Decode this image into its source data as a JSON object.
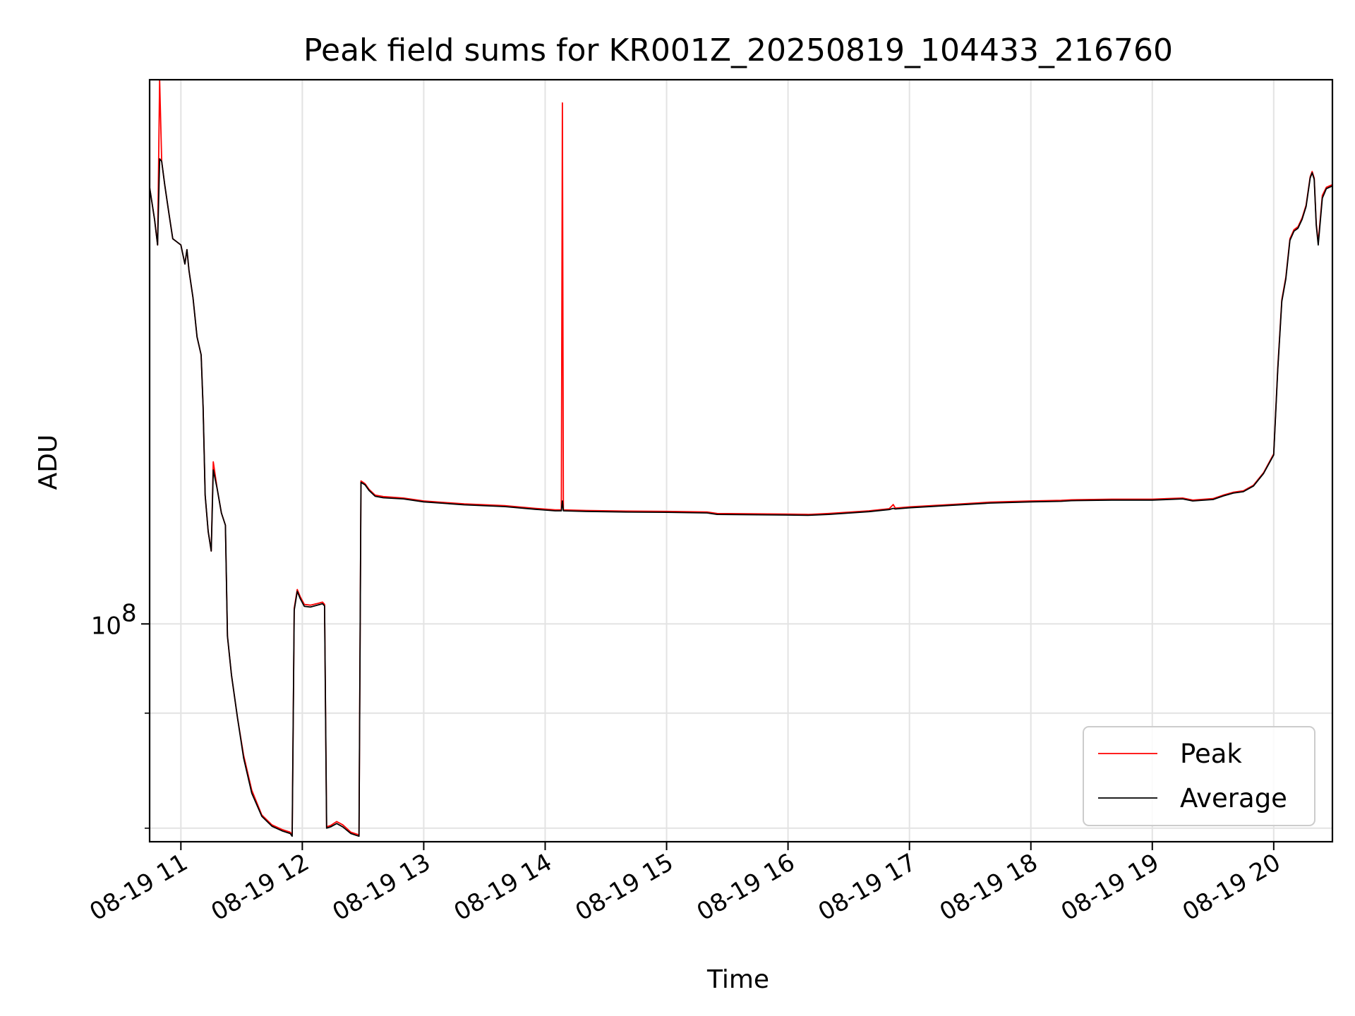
{
  "chart_data": {
    "type": "line",
    "title": "Peak field sums for KR001Z_20250819_104433_216760",
    "xlabel": "Time",
    "ylabel": "ADU",
    "y_scale": "log",
    "ylim": [
      58000000,
      390000000
    ],
    "xlim": [
      "2025-08-19 10:44:33",
      "2025-08-19 20:29:00"
    ],
    "x_ticks": [
      {
        "t": "2025-08-19 11:00",
        "label": "08-19 11"
      },
      {
        "t": "2025-08-19 12:00",
        "label": "08-19 12"
      },
      {
        "t": "2025-08-19 13:00",
        "label": "08-19 13"
      },
      {
        "t": "2025-08-19 14:00",
        "label": "08-19 14"
      },
      {
        "t": "2025-08-19 15:00",
        "label": "08-19 15"
      },
      {
        "t": "2025-08-19 16:00",
        "label": "08-19 16"
      },
      {
        "t": "2025-08-19 17:00",
        "label": "08-19 17"
      },
      {
        "t": "2025-08-19 18:00",
        "label": "08-19 18"
      },
      {
        "t": "2025-08-19 19:00",
        "label": "08-19 19"
      },
      {
        "t": "2025-08-19 20:00",
        "label": "08-19 20"
      }
    ],
    "y_major_ticks": [
      {
        "value": 100000000,
        "label_base": "10",
        "label_exp": "8"
      }
    ],
    "y_minor_ticks": [
      80000000,
      60000000
    ],
    "grid": true,
    "legend_position": "lower-right",
    "series": [
      {
        "name": "Peak",
        "color": "#ff0000",
        "points": [
          [
            "2025-08-19 10:44:33",
            298000000
          ],
          [
            "2025-08-19 10:47:00",
            275000000
          ],
          [
            "2025-08-19 10:48:30",
            258000000
          ],
          [
            "2025-08-19 10:49:30",
            390000000
          ],
          [
            "2025-08-19 10:50:30",
            318000000
          ],
          [
            "2025-08-19 10:52:00",
            300000000
          ],
          [
            "2025-08-19 10:54:00",
            280000000
          ],
          [
            "2025-08-19 10:56:00",
            262000000
          ],
          [
            "2025-08-19 10:58:00",
            260000000
          ],
          [
            "2025-08-19 11:00:00",
            258000000
          ],
          [
            "2025-08-19 11:02:00",
            246000000
          ],
          [
            "2025-08-19 11:03:00",
            255000000
          ],
          [
            "2025-08-19 11:04:00",
            242000000
          ],
          [
            "2025-08-19 11:06:00",
            226000000
          ],
          [
            "2025-08-19 11:08:00",
            205000000
          ],
          [
            "2025-08-19 11:10:00",
            196000000
          ],
          [
            "2025-08-19 11:11:00",
            172000000
          ],
          [
            "2025-08-19 11:12:00",
            138000000
          ],
          [
            "2025-08-19 11:13:30",
            126000000
          ],
          [
            "2025-08-19 11:15:00",
            120000000
          ],
          [
            "2025-08-19 11:16:00",
            150000000
          ],
          [
            "2025-08-19 11:18:00",
            140000000
          ],
          [
            "2025-08-19 11:20:00",
            132000000
          ],
          [
            "2025-08-19 11:22:00",
            128000000
          ],
          [
            "2025-08-19 11:23:00",
            97000000
          ],
          [
            "2025-08-19 11:25:00",
            88000000
          ],
          [
            "2025-08-19 11:28:00",
            79000000
          ],
          [
            "2025-08-19 11:31:00",
            72000000
          ],
          [
            "2025-08-19 11:35:00",
            66000000
          ],
          [
            "2025-08-19 11:40:00",
            62000000
          ],
          [
            "2025-08-19 11:45:00",
            60500000
          ],
          [
            "2025-08-19 11:50:00",
            59800000
          ],
          [
            "2025-08-19 11:54:00",
            59400000
          ],
          [
            "2025-08-19 11:55:00",
            59000000
          ],
          [
            "2025-08-19 11:56:00",
            104000000
          ],
          [
            "2025-08-19 11:57:30",
            109000000
          ],
          [
            "2025-08-19 11:59:00",
            107000000
          ],
          [
            "2025-08-19 12:01:00",
            105000000
          ],
          [
            "2025-08-19 12:04:00",
            104800000
          ],
          [
            "2025-08-19 12:08:00",
            105300000
          ],
          [
            "2025-08-19 12:10:00",
            105600000
          ],
          [
            "2025-08-19 12:11:00",
            105000000
          ],
          [
            "2025-08-19 12:12:00",
            60200000
          ],
          [
            "2025-08-19 12:14:00",
            60400000
          ],
          [
            "2025-08-19 12:17:00",
            61000000
          ],
          [
            "2025-08-19 12:20:00",
            60500000
          ],
          [
            "2025-08-19 12:24:00",
            59400000
          ],
          [
            "2025-08-19 12:27:00",
            59100000
          ],
          [
            "2025-08-19 12:28:00",
            59000000
          ],
          [
            "2025-08-19 12:29:00",
            143000000
          ],
          [
            "2025-08-19 12:31:00",
            142000000
          ],
          [
            "2025-08-19 12:33:00",
            140000000
          ],
          [
            "2025-08-19 12:36:00",
            138000000
          ],
          [
            "2025-08-19 12:40:00",
            137500000
          ],
          [
            "2025-08-19 12:50:00",
            137000000
          ],
          [
            "2025-08-19 13:00:00",
            136000000
          ],
          [
            "2025-08-19 13:20:00",
            135000000
          ],
          [
            "2025-08-19 13:40:00",
            134400000
          ],
          [
            "2025-08-19 13:55:00",
            133500000
          ],
          [
            "2025-08-19 14:05:00",
            133000000
          ],
          [
            "2025-08-19 14:08:00",
            133000000
          ],
          [
            "2025-08-19 14:08:30",
            368000000
          ],
          [
            "2025-08-19 14:09:00",
            133000000
          ],
          [
            "2025-08-19 14:20:00",
            132800000
          ],
          [
            "2025-08-19 14:40:00",
            132600000
          ],
          [
            "2025-08-19 15:00:00",
            132500000
          ],
          [
            "2025-08-19 15:20:00",
            132300000
          ],
          [
            "2025-08-19 15:25:00",
            131800000
          ],
          [
            "2025-08-19 15:40:00",
            131700000
          ],
          [
            "2025-08-19 16:00:00",
            131600000
          ],
          [
            "2025-08-19 16:10:00",
            131500000
          ],
          [
            "2025-08-19 16:20:00",
            131800000
          ],
          [
            "2025-08-19 16:40:00",
            132700000
          ],
          [
            "2025-08-19 16:50:00",
            133400000
          ],
          [
            "2025-08-19 16:52:00",
            134800000
          ],
          [
            "2025-08-19 16:53:00",
            133600000
          ],
          [
            "2025-08-19 17:00:00",
            134000000
          ],
          [
            "2025-08-19 17:20:00",
            134800000
          ],
          [
            "2025-08-19 17:40:00",
            135600000
          ],
          [
            "2025-08-19 18:00:00",
            136000000
          ],
          [
            "2025-08-19 18:15:00",
            136200000
          ],
          [
            "2025-08-19 18:20:00",
            136400000
          ],
          [
            "2025-08-19 18:40:00",
            136600000
          ],
          [
            "2025-08-19 19:00:00",
            136600000
          ],
          [
            "2025-08-19 19:15:00",
            137000000
          ],
          [
            "2025-08-19 19:20:00",
            136300000
          ],
          [
            "2025-08-19 19:30:00",
            136800000
          ],
          [
            "2025-08-19 19:35:00",
            138000000
          ],
          [
            "2025-08-19 19:40:00",
            139000000
          ],
          [
            "2025-08-19 19:45:00",
            139500000
          ],
          [
            "2025-08-19 19:50:00",
            141500000
          ],
          [
            "2025-08-19 19:55:00",
            146000000
          ],
          [
            "2025-08-19 20:00:00",
            153000000
          ],
          [
            "2025-08-19 20:02:00",
            190000000
          ],
          [
            "2025-08-19 20:04:00",
            225000000
          ],
          [
            "2025-08-19 20:06:00",
            238000000
          ],
          [
            "2025-08-19 20:08:00",
            262000000
          ],
          [
            "2025-08-19 20:10:00",
            268000000
          ],
          [
            "2025-08-19 20:12:00",
            270000000
          ],
          [
            "2025-08-19 20:14:00",
            276000000
          ],
          [
            "2025-08-19 20:16:00",
            285000000
          ],
          [
            "2025-08-19 20:18:00",
            306000000
          ],
          [
            "2025-08-19 20:19:00",
            310000000
          ],
          [
            "2025-08-19 20:20:00",
            305000000
          ],
          [
            "2025-08-19 20:21:00",
            272000000
          ],
          [
            "2025-08-19 20:22:00",
            260000000
          ],
          [
            "2025-08-19 20:24:00",
            292000000
          ],
          [
            "2025-08-19 20:26:00",
            298000000
          ],
          [
            "2025-08-19 20:29:00",
            300000000
          ]
        ]
      },
      {
        "name": "Average",
        "color": "#000000",
        "points": [
          [
            "2025-08-19 10:44:33",
            298000000
          ],
          [
            "2025-08-19 10:47:00",
            275000000
          ],
          [
            "2025-08-19 10:48:30",
            258000000
          ],
          [
            "2025-08-19 10:49:30",
            320000000
          ],
          [
            "2025-08-19 10:50:30",
            318000000
          ],
          [
            "2025-08-19 10:52:00",
            300000000
          ],
          [
            "2025-08-19 10:54:00",
            280000000
          ],
          [
            "2025-08-19 10:56:00",
            262000000
          ],
          [
            "2025-08-19 10:58:00",
            260000000
          ],
          [
            "2025-08-19 11:00:00",
            258000000
          ],
          [
            "2025-08-19 11:02:00",
            246000000
          ],
          [
            "2025-08-19 11:03:00",
            255000000
          ],
          [
            "2025-08-19 11:04:00",
            242000000
          ],
          [
            "2025-08-19 11:06:00",
            226000000
          ],
          [
            "2025-08-19 11:08:00",
            205000000
          ],
          [
            "2025-08-19 11:10:00",
            196000000
          ],
          [
            "2025-08-19 11:11:00",
            172000000
          ],
          [
            "2025-08-19 11:12:00",
            138000000
          ],
          [
            "2025-08-19 11:13:30",
            126000000
          ],
          [
            "2025-08-19 11:15:00",
            120000000
          ],
          [
            "2025-08-19 11:16:00",
            147000000
          ],
          [
            "2025-08-19 11:18:00",
            140000000
          ],
          [
            "2025-08-19 11:20:00",
            132000000
          ],
          [
            "2025-08-19 11:22:00",
            128000000
          ],
          [
            "2025-08-19 11:23:00",
            97000000
          ],
          [
            "2025-08-19 11:25:00",
            88000000
          ],
          [
            "2025-08-19 11:28:00",
            79000000
          ],
          [
            "2025-08-19 11:31:00",
            71500000
          ],
          [
            "2025-08-19 11:35:00",
            65500000
          ],
          [
            "2025-08-19 11:40:00",
            61800000
          ],
          [
            "2025-08-19 11:45:00",
            60300000
          ],
          [
            "2025-08-19 11:50:00",
            59600000
          ],
          [
            "2025-08-19 11:54:00",
            59200000
          ],
          [
            "2025-08-19 11:55:00",
            58800000
          ],
          [
            "2025-08-19 11:56:00",
            103500000
          ],
          [
            "2025-08-19 11:57:30",
            108500000
          ],
          [
            "2025-08-19 11:59:00",
            106500000
          ],
          [
            "2025-08-19 12:01:00",
            104500000
          ],
          [
            "2025-08-19 12:04:00",
            104300000
          ],
          [
            "2025-08-19 12:08:00",
            104900000
          ],
          [
            "2025-08-19 12:10:00",
            105200000
          ],
          [
            "2025-08-19 12:11:00",
            104600000
          ],
          [
            "2025-08-19 12:12:00",
            60000000
          ],
          [
            "2025-08-19 12:14:00",
            60200000
          ],
          [
            "2025-08-19 12:17:00",
            60700000
          ],
          [
            "2025-08-19 12:20:00",
            60200000
          ],
          [
            "2025-08-19 12:24:00",
            59200000
          ],
          [
            "2025-08-19 12:27:00",
            58900000
          ],
          [
            "2025-08-19 12:28:00",
            58800000
          ],
          [
            "2025-08-19 12:29:00",
            142500000
          ],
          [
            "2025-08-19 12:31:00",
            141600000
          ],
          [
            "2025-08-19 12:33:00",
            139600000
          ],
          [
            "2025-08-19 12:36:00",
            137600000
          ],
          [
            "2025-08-19 12:40:00",
            137100000
          ],
          [
            "2025-08-19 12:50:00",
            136700000
          ],
          [
            "2025-08-19 13:00:00",
            135700000
          ],
          [
            "2025-08-19 13:20:00",
            134700000
          ],
          [
            "2025-08-19 13:40:00",
            134100000
          ],
          [
            "2025-08-19 13:55:00",
            133200000
          ],
          [
            "2025-08-19 14:05:00",
            132700000
          ],
          [
            "2025-08-19 14:08:00",
            132700000
          ],
          [
            "2025-08-19 14:08:30",
            136000000
          ],
          [
            "2025-08-19 14:09:00",
            132700000
          ],
          [
            "2025-08-19 14:20:00",
            132500000
          ],
          [
            "2025-08-19 14:40:00",
            132300000
          ],
          [
            "2025-08-19 15:00:00",
            132200000
          ],
          [
            "2025-08-19 15:20:00",
            132000000
          ],
          [
            "2025-08-19 15:25:00",
            131500000
          ],
          [
            "2025-08-19 15:40:00",
            131400000
          ],
          [
            "2025-08-19 16:00:00",
            131300000
          ],
          [
            "2025-08-19 16:10:00",
            131200000
          ],
          [
            "2025-08-19 16:20:00",
            131500000
          ],
          [
            "2025-08-19 16:40:00",
            132400000
          ],
          [
            "2025-08-19 16:50:00",
            133100000
          ],
          [
            "2025-08-19 16:52:00",
            133500000
          ],
          [
            "2025-08-19 16:53:00",
            133300000
          ],
          [
            "2025-08-19 17:00:00",
            133700000
          ],
          [
            "2025-08-19 17:20:00",
            134500000
          ],
          [
            "2025-08-19 17:40:00",
            135300000
          ],
          [
            "2025-08-19 18:00:00",
            135700000
          ],
          [
            "2025-08-19 18:15:00",
            135900000
          ],
          [
            "2025-08-19 18:20:00",
            136100000
          ],
          [
            "2025-08-19 18:40:00",
            136300000
          ],
          [
            "2025-08-19 19:00:00",
            136300000
          ],
          [
            "2025-08-19 19:15:00",
            136700000
          ],
          [
            "2025-08-19 19:20:00",
            136000000
          ],
          [
            "2025-08-19 19:30:00",
            136500000
          ],
          [
            "2025-08-19 19:35:00",
            137700000
          ],
          [
            "2025-08-19 19:40:00",
            138700000
          ],
          [
            "2025-08-19 19:45:00",
            139200000
          ],
          [
            "2025-08-19 19:50:00",
            141200000
          ],
          [
            "2025-08-19 19:55:00",
            145700000
          ],
          [
            "2025-08-19 20:00:00",
            152600000
          ],
          [
            "2025-08-19 20:02:00",
            189000000
          ],
          [
            "2025-08-19 20:04:00",
            224000000
          ],
          [
            "2025-08-19 20:06:00",
            237000000
          ],
          [
            "2025-08-19 20:08:00",
            261000000
          ],
          [
            "2025-08-19 20:10:00",
            267000000
          ],
          [
            "2025-08-19 20:12:00",
            269000000
          ],
          [
            "2025-08-19 20:14:00",
            275000000
          ],
          [
            "2025-08-19 20:16:00",
            284000000
          ],
          [
            "2025-08-19 20:18:00",
            305000000
          ],
          [
            "2025-08-19 20:19:00",
            309000000
          ],
          [
            "2025-08-19 20:20:00",
            304000000
          ],
          [
            "2025-08-19 20:21:00",
            271000000
          ],
          [
            "2025-08-19 20:22:00",
            258000000
          ],
          [
            "2025-08-19 20:24:00",
            290000000
          ],
          [
            "2025-08-19 20:26:00",
            297000000
          ],
          [
            "2025-08-19 20:29:00",
            299000000
          ]
        ]
      }
    ]
  }
}
